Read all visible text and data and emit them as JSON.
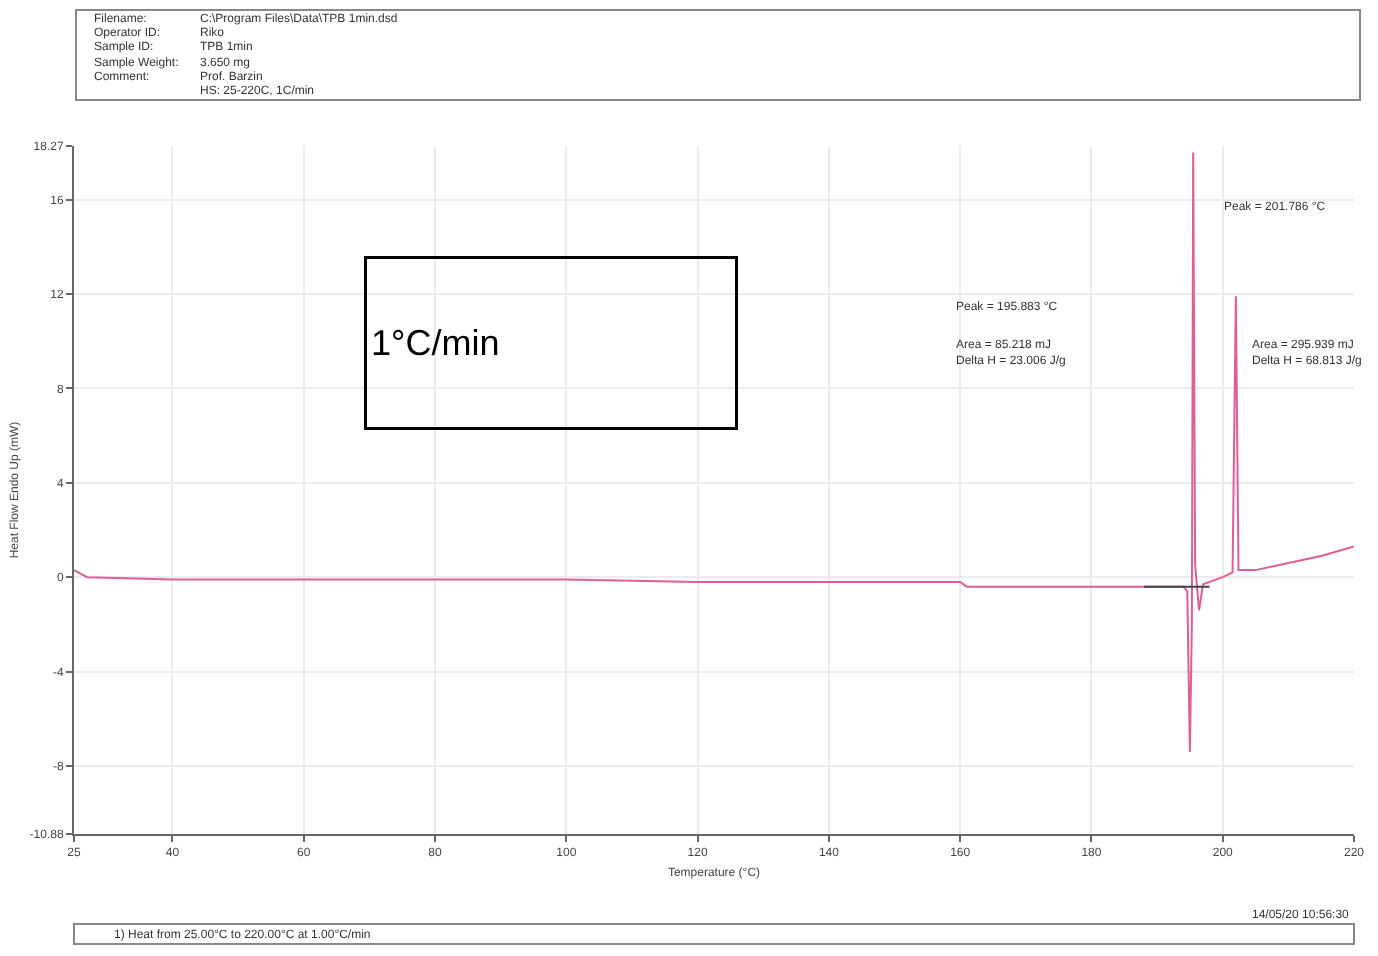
{
  "chart_data": {
    "type": "line",
    "xlabel": "Temperature (°C)",
    "ylabel": "Heat Flow Endo Up (mW)",
    "xlim": [
      25,
      220
    ],
    "xticks": [
      25,
      40,
      60,
      80,
      100,
      120,
      140,
      160,
      180,
      200,
      220
    ],
    "ylim": [
      -10.88,
      18.27
    ],
    "yticks": [
      -10.88,
      -8,
      -4,
      0,
      4,
      8,
      12,
      16,
      18.27
    ],
    "grid": true,
    "marker": "none",
    "line_style": "solid",
    "series": [
      {
        "color": "#de5f95",
        "x": [
          25,
          27,
          40,
          60,
          80,
          100,
          120,
          140,
          160,
          161,
          180,
          194,
          194.6,
          195.0,
          195.3,
          195.5,
          195.8,
          196.4,
          197,
          200,
          201.5,
          202.0,
          202.4,
          205,
          210,
          215,
          220
        ],
        "values": [
          0.3,
          0.0,
          -0.1,
          -0.1,
          -0.1,
          -0.1,
          -0.2,
          -0.2,
          -0.2,
          -0.4,
          -0.4,
          -0.4,
          -0.6,
          -7.4,
          -2,
          18.0,
          0.5,
          -1.4,
          -0.3,
          0.0,
          0.2,
          11.9,
          0.3,
          0.3,
          0.6,
          0.9,
          1.3
        ]
      },
      {
        "color": "#444444",
        "x": [
          188,
          198
        ],
        "values": [
          -0.4,
          -0.4
        ]
      }
    ],
    "annotations": [
      "1°C/min",
      "Peak = 195.883 °C",
      "Area = 85.218 mJ",
      "Delta H = 23.006 J/g",
      "Peak = 201.786 °C",
      "Area = 295.939 mJ",
      "Delta H = 68.813 J/g",
      "Filename:",
      "C:\\Program Files\\Data\\TPB 1min.dsd",
      "Operator ID:",
      "Riko",
      "Sample ID:",
      "TPB 1min",
      "Sample Weight:",
      "3.650 mg",
      "Comment:",
      "Prof. Barzin",
      "HS: 25-220C, 1C/min",
      "1) Heat from 25.00°C to 220.00°C at 1.00°C/min",
      "14/05/20 10:56:30"
    ]
  }
}
